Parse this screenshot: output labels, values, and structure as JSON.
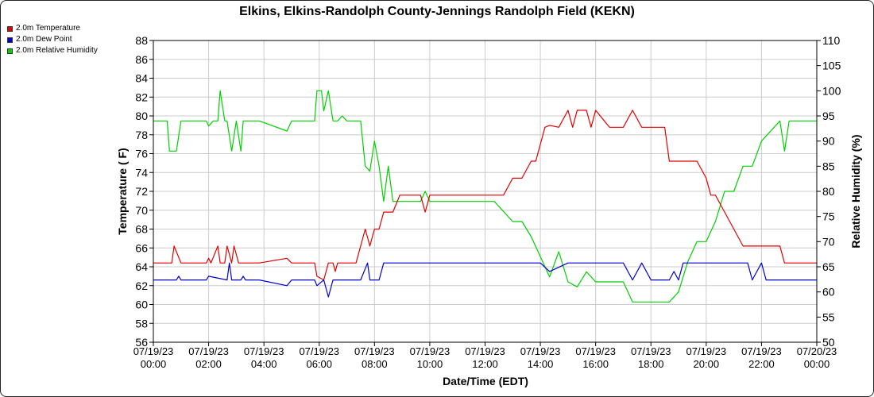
{
  "chart_data": {
    "type": "line",
    "title": "Elkins, Elkins-Randolph County-Jennings Randolph Field (KEKN)",
    "xlabel": "Date/Time (EDT)",
    "ylabel": "Temperature ( F)",
    "y2label": "Relative Humidity (%)",
    "ylim": [
      56,
      88
    ],
    "y2lim": [
      50,
      110
    ],
    "yticks": [
      "56",
      "58",
      "60",
      "62",
      "64",
      "66",
      "68",
      "70",
      "72",
      "74",
      "76",
      "78",
      "80",
      "82",
      "84",
      "86",
      "88"
    ],
    "y2ticks": [
      "50",
      "55",
      "60",
      "65",
      "70",
      "75",
      "80",
      "85",
      "90",
      "95",
      "100",
      "105",
      "110"
    ],
    "x_ticks": [
      {
        "date": "07/19/23",
        "time": "00:00"
      },
      {
        "date": "07/19/23",
        "time": "02:00"
      },
      {
        "date": "07/19/23",
        "time": "04:00"
      },
      {
        "date": "07/19/23",
        "time": "06:00"
      },
      {
        "date": "07/19/23",
        "time": "08:00"
      },
      {
        "date": "07/19/23",
        "time": "10:00"
      },
      {
        "date": "07/19/23",
        "time": "12:00"
      },
      {
        "date": "07/19/23",
        "time": "14:00"
      },
      {
        "date": "07/19/23",
        "time": "16:00"
      },
      {
        "date": "07/19/23",
        "time": "18:00"
      },
      {
        "date": "07/19/23",
        "time": "20:00"
      },
      {
        "date": "07/19/23",
        "time": "22:00"
      },
      {
        "date": "07/20/23",
        "time": "00:00"
      }
    ],
    "grid": true,
    "legend_position": "top-left",
    "series": [
      {
        "name": "2.0m Temperature",
        "color": "#e00000",
        "axis": "left",
        "x": [
          "07/19/23 00:00",
          "07/19/23 00:40",
          "07/19/23 00:45",
          "07/19/23 01:00",
          "07/19/23 01:55",
          "07/19/23 02:00",
          "07/19/23 02:05",
          "07/19/23 02:20",
          "07/19/23 02:25",
          "07/19/23 02:35",
          "07/19/23 02:40",
          "07/19/23 02:50",
          "07/19/23 02:55",
          "07/19/23 03:05",
          "07/19/23 03:15",
          "07/19/23 03:30",
          "07/19/23 03:50",
          "07/19/23 04:50",
          "07/19/23 05:00",
          "07/19/23 05:10",
          "07/19/23 05:50",
          "07/19/23 05:55",
          "07/19/23 06:10",
          "07/19/23 06:20",
          "07/19/23 06:30",
          "07/19/23 06:35",
          "07/19/23 06:40",
          "07/19/23 06:50",
          "07/19/23 07:00",
          "07/19/23 07:20",
          "07/19/23 07:30",
          "07/19/23 07:40",
          "07/19/23 07:50",
          "07/19/23 08:00",
          "07/19/23 08:10",
          "07/19/23 08:20",
          "07/19/23 08:40",
          "07/19/23 08:55",
          "07/19/23 09:40",
          "07/19/23 09:50",
          "07/19/23 10:00",
          "07/19/23 10:30",
          "07/19/23 11:00",
          "07/19/23 12:00",
          "07/19/23 12:20",
          "07/19/23 12:40",
          "07/19/23 13:00",
          "07/19/23 13:20",
          "07/19/23 13:40",
          "07/19/23 13:50",
          "07/19/23 14:00",
          "07/19/23 14:10",
          "07/19/23 14:20",
          "07/19/23 14:40",
          "07/19/23 15:00",
          "07/19/23 15:10",
          "07/19/23 15:20",
          "07/19/23 15:40",
          "07/19/23 15:50",
          "07/19/23 16:00",
          "07/19/23 16:30",
          "07/19/23 17:00",
          "07/19/23 17:20",
          "07/19/23 17:40",
          "07/19/23 18:00",
          "07/19/23 18:30",
          "07/19/23 18:40",
          "07/19/23 19:00",
          "07/19/23 19:20",
          "07/19/23 19:40",
          "07/19/23 20:00",
          "07/19/23 20:10",
          "07/19/23 20:20",
          "07/19/23 20:40",
          "07/19/23 21:00",
          "07/19/23 21:20",
          "07/19/23 21:40",
          "07/19/23 22:00",
          "07/19/23 22:40",
          "07/19/23 22:50",
          "07/19/23 23:00",
          "07/19/23 23:30",
          "07/19/23 23:50",
          "07/20/23 00:00"
        ],
        "y": [
          64.4,
          64.4,
          66.2,
          64.4,
          64.4,
          64.9,
          64.4,
          66.2,
          64.4,
          64.4,
          66.2,
          64.4,
          66.2,
          64.4,
          64.4,
          64.4,
          64.4,
          64.9,
          64.4,
          64.4,
          64.4,
          63.0,
          62.6,
          64.4,
          64.4,
          63.5,
          64.4,
          64.4,
          64.4,
          64.4,
          66.2,
          68.0,
          66.2,
          68.0,
          68.0,
          69.8,
          69.8,
          71.6,
          71.6,
          69.8,
          71.6,
          71.6,
          71.6,
          71.6,
          71.6,
          71.6,
          73.4,
          73.4,
          75.2,
          75.2,
          77.0,
          78.8,
          79.0,
          78.8,
          80.6,
          78.8,
          80.6,
          80.6,
          78.8,
          80.6,
          78.8,
          78.8,
          80.6,
          78.8,
          78.8,
          78.8,
          75.2,
          75.2,
          75.2,
          75.2,
          73.4,
          71.6,
          71.6,
          69.8,
          68.0,
          66.2,
          66.2,
          66.2,
          66.2,
          64.4,
          64.4,
          64.4,
          64.4,
          64.4
        ]
      },
      {
        "name": "2.0m Dew Point",
        "color": "#0000d0",
        "axis": "left",
        "x": [
          "07/19/23 00:00",
          "07/19/23 00:50",
          "07/19/23 00:55",
          "07/19/23 01:00",
          "07/19/23 01:55",
          "07/19/23 02:00",
          "07/19/23 02:40",
          "07/19/23 02:45",
          "07/19/23 02:50",
          "07/19/23 03:10",
          "07/19/23 03:15",
          "07/19/23 03:20",
          "07/19/23 03:50",
          "07/19/23 04:50",
          "07/19/23 05:00",
          "07/19/23 05:50",
          "07/19/23 05:55",
          "07/19/23 06:10",
          "07/19/23 06:20",
          "07/19/23 06:30",
          "07/19/23 06:40",
          "07/19/23 07:00",
          "07/19/23 07:30",
          "07/19/23 07:45",
          "07/19/23 07:50",
          "07/19/23 08:00",
          "07/19/23 08:10",
          "07/19/23 08:20",
          "07/19/23 08:30",
          "07/19/23 09:00",
          "07/19/23 10:00",
          "07/19/23 11:00",
          "07/19/23 12:00",
          "07/19/23 13:00",
          "07/19/23 14:00",
          "07/19/23 14:20",
          "07/19/23 15:00",
          "07/19/23 16:00",
          "07/19/23 17:00",
          "07/19/23 17:20",
          "07/19/23 17:40",
          "07/19/23 18:00",
          "07/19/23 18:40",
          "07/19/23 18:50",
          "07/19/23 19:00",
          "07/19/23 19:10",
          "07/19/23 19:20",
          "07/19/23 19:40",
          "07/19/23 20:00",
          "07/19/23 21:00",
          "07/19/23 21:30",
          "07/19/23 21:40",
          "07/19/23 22:00",
          "07/19/23 22:10",
          "07/19/23 22:20",
          "07/19/23 23:00",
          "07/19/23 23:50",
          "07/20/23 00:00"
        ],
        "y": [
          62.6,
          62.6,
          63.0,
          62.6,
          62.6,
          63.0,
          62.6,
          64.4,
          62.6,
          62.6,
          63.0,
          62.6,
          62.6,
          62.0,
          62.6,
          62.6,
          62.0,
          62.6,
          60.8,
          62.6,
          62.6,
          62.6,
          62.6,
          64.4,
          62.6,
          62.6,
          62.6,
          64.4,
          64.4,
          64.4,
          64.4,
          64.4,
          64.4,
          64.4,
          64.4,
          63.5,
          64.4,
          64.4,
          64.4,
          62.6,
          64.4,
          62.6,
          62.6,
          63.5,
          62.6,
          64.4,
          64.4,
          64.4,
          64.4,
          64.4,
          64.4,
          62.6,
          64.4,
          62.6,
          62.6,
          62.6,
          62.6,
          62.6
        ]
      },
      {
        "name": "2.0m Relative Humidity",
        "color": "#00d000",
        "axis": "right",
        "x": [
          "07/19/23 00:00",
          "07/19/23 00:30",
          "07/19/23 00:35",
          "07/19/23 00:50",
          "07/19/23 01:00",
          "07/19/23 01:55",
          "07/19/23 02:00",
          "07/19/23 02:10",
          "07/19/23 02:20",
          "07/19/23 02:25",
          "07/19/23 02:35",
          "07/19/23 02:40",
          "07/19/23 02:50",
          "07/19/23 03:00",
          "07/19/23 03:10",
          "07/19/23 03:15",
          "07/19/23 03:30",
          "07/19/23 03:50",
          "07/19/23 04:50",
          "07/19/23 05:00",
          "07/19/23 05:50",
          "07/19/23 05:55",
          "07/19/23 06:05",
          "07/19/23 06:10",
          "07/19/23 06:20",
          "07/19/23 06:30",
          "07/19/23 06:40",
          "07/19/23 06:50",
          "07/19/23 07:00",
          "07/19/23 07:30",
          "07/19/23 07:40",
          "07/19/23 07:50",
          "07/19/23 08:00",
          "07/19/23 08:10",
          "07/19/23 08:20",
          "07/19/23 08:30",
          "07/19/23 08:40",
          "07/19/23 09:00",
          "07/19/23 09:40",
          "07/19/23 09:50",
          "07/19/23 10:00",
          "07/19/23 10:30",
          "07/19/23 11:00",
          "07/19/23 12:00",
          "07/19/23 12:20",
          "07/19/23 13:00",
          "07/19/23 13:20",
          "07/19/23 13:40",
          "07/19/23 14:00",
          "07/19/23 14:20",
          "07/19/23 14:40",
          "07/19/23 15:00",
          "07/19/23 15:20",
          "07/19/23 15:40",
          "07/19/23 16:00",
          "07/19/23 16:30",
          "07/19/23 17:00",
          "07/19/23 17:20",
          "07/19/23 17:40",
          "07/19/23 18:00",
          "07/19/23 18:20",
          "07/19/23 18:40",
          "07/19/23 19:00",
          "07/19/23 19:20",
          "07/19/23 19:40",
          "07/19/23 20:00",
          "07/19/23 20:20",
          "07/19/23 20:40",
          "07/19/23 21:00",
          "07/19/23 21:20",
          "07/19/23 21:40",
          "07/19/23 22:00",
          "07/19/23 22:40",
          "07/19/23 22:50",
          "07/19/23 23:00",
          "07/19/23 23:30",
          "07/19/23 23:50",
          "07/20/23 00:00"
        ],
        "y": [
          94,
          94,
          88,
          88,
          94,
          94,
          93,
          94,
          94,
          100,
          94,
          94,
          88,
          94,
          88,
          94,
          94,
          94,
          92,
          94,
          94,
          100,
          100,
          96,
          100,
          94,
          94,
          95,
          94,
          94,
          85,
          84,
          90,
          85,
          78,
          85,
          78,
          78,
          78,
          80,
          78,
          78,
          78,
          78,
          78,
          74,
          74,
          71,
          67,
          63,
          68,
          62,
          61,
          64,
          62,
          62,
          62,
          58,
          58,
          58,
          58,
          58,
          60,
          66,
          70,
          70,
          74,
          80,
          80,
          85,
          85,
          90,
          94,
          88,
          94,
          94,
          94,
          94
        ]
      }
    ]
  }
}
